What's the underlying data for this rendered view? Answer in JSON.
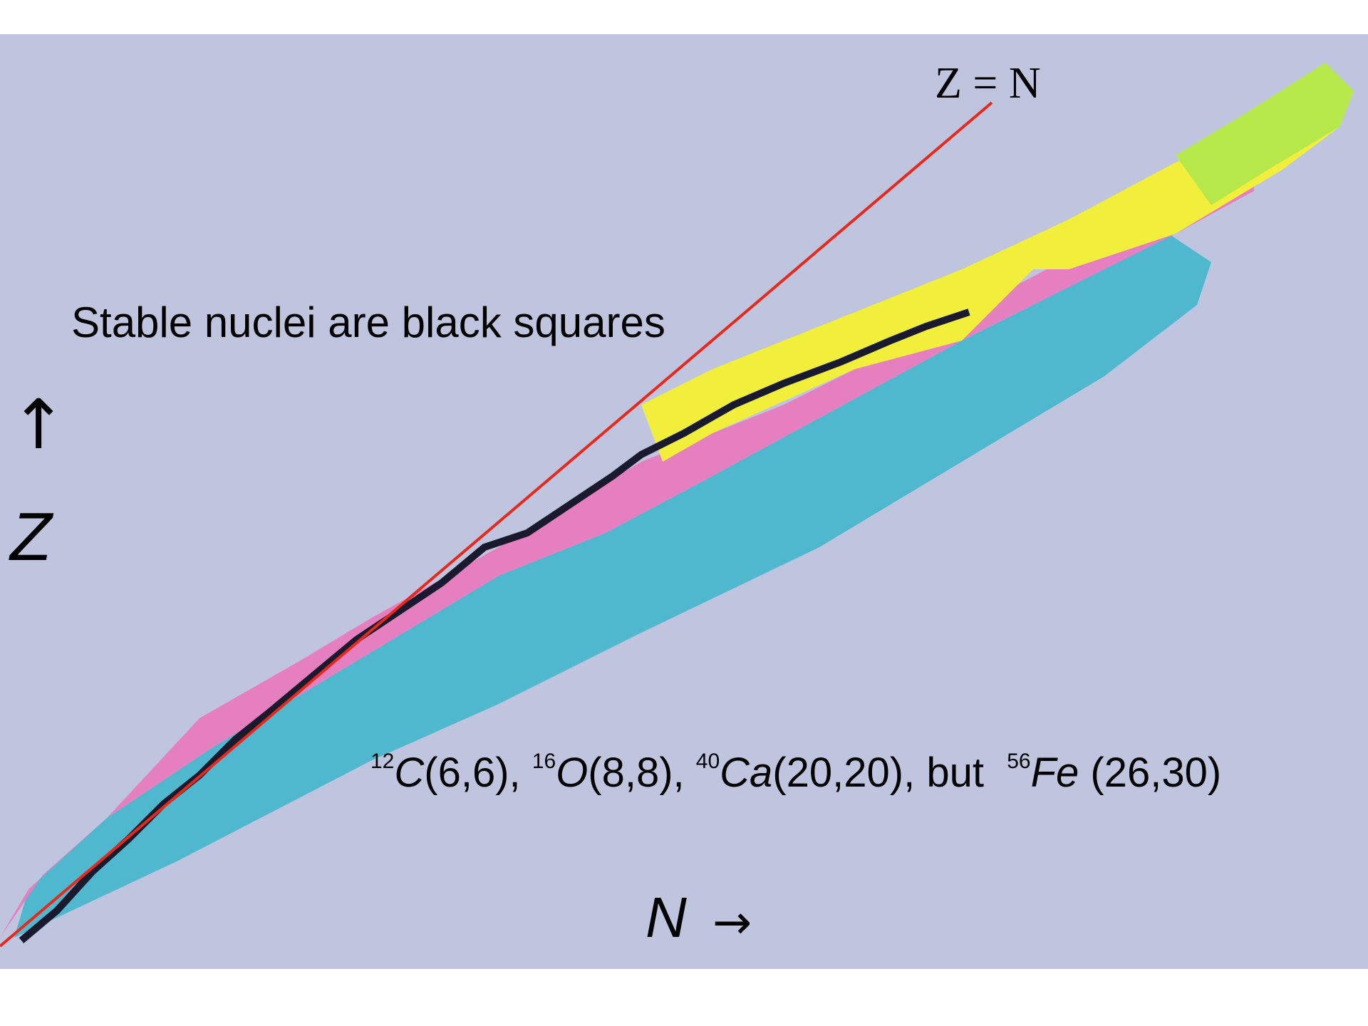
{
  "caption": "Stable nuclei are black squares",
  "line_label": "Z = N",
  "axes": {
    "y_arrow": "↑",
    "y_label": "Z",
    "x_label": "N",
    "x_arrow": "→"
  },
  "examples": [
    {
      "mass": "12",
      "symbol": "C",
      "coords": "(6,6),"
    },
    {
      "mass": "16",
      "symbol": "O",
      "coords": "(8,8),"
    },
    {
      "mass": "40",
      "symbol": "Ca",
      "coords": "(20,20),"
    },
    {
      "connector": "but"
    },
    {
      "mass": "56",
      "symbol": "Fe",
      "coords": "(26,30)"
    }
  ],
  "colors": {
    "background": "#c0c5df",
    "line": "#e8281a",
    "stable": "#1a1a2e",
    "neutron_rich": "#4fb8cf",
    "proton_rich": "#e67fc0",
    "alpha_band": "#f2ef3c",
    "heavy_band": "#b6e84a"
  }
}
